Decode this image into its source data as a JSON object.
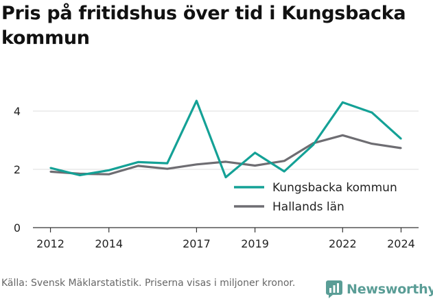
{
  "title": "Pris på fritidshus över tid i Kungsbacka kommun",
  "source": "Källa: Svensk Mäklarstatistik. Priserna visas i miljoner kronor.",
  "brand": {
    "name": "Newsworthy",
    "icon": "newsworthy-logo-icon"
  },
  "colors": {
    "kungsbacka": "#14a196",
    "halland": "#6e6d72",
    "grid": "#dddddd",
    "axis": "#333333"
  },
  "chart_data": {
    "type": "line",
    "title": "Pris på fritidshus över tid i Kungsbacka kommun",
    "xlim": [
      2011.4,
      2024.6
    ],
    "ylim": [
      0,
      4.8
    ],
    "x_ticks": [
      2012,
      2014,
      2017,
      2019,
      2022,
      2024
    ],
    "y_ticks": [
      0,
      2,
      4
    ],
    "grid": true,
    "legend": "inside-right",
    "series": [
      {
        "name": "Kungsbacka kommun",
        "color": "#14a196",
        "points": [
          {
            "x": 2012,
            "y": 2.05
          },
          {
            "x": 2013,
            "y": 1.8
          },
          {
            "x": 2014,
            "y": 1.97
          },
          {
            "x": 2015,
            "y": 2.25
          },
          {
            "x": 2016,
            "y": 2.21
          },
          {
            "x": 2017,
            "y": 4.35
          },
          {
            "x": 2018,
            "y": 1.73
          },
          {
            "x": 2019,
            "y": 2.57
          },
          {
            "x": 2020,
            "y": 1.93
          },
          {
            "x": 2021,
            "y": 2.85
          },
          {
            "x": 2022,
            "y": 4.3
          },
          {
            "x": 2023,
            "y": 3.95
          },
          {
            "x": 2024,
            "y": 3.05
          }
        ]
      },
      {
        "name": "Hallands län",
        "color": "#6e6d72",
        "points": [
          {
            "x": 2012,
            "y": 1.92
          },
          {
            "x": 2013,
            "y": 1.85
          },
          {
            "x": 2014,
            "y": 1.83
          },
          {
            "x": 2015,
            "y": 2.12
          },
          {
            "x": 2016,
            "y": 2.02
          },
          {
            "x": 2017,
            "y": 2.17
          },
          {
            "x": 2018,
            "y": 2.26
          },
          {
            "x": 2019,
            "y": 2.13
          },
          {
            "x": 2020,
            "y": 2.29
          },
          {
            "x": 2021,
            "y": 2.9
          },
          {
            "x": 2022,
            "y": 3.17
          },
          {
            "x": 2023,
            "y": 2.88
          },
          {
            "x": 2024,
            "y": 2.73
          }
        ]
      }
    ]
  }
}
